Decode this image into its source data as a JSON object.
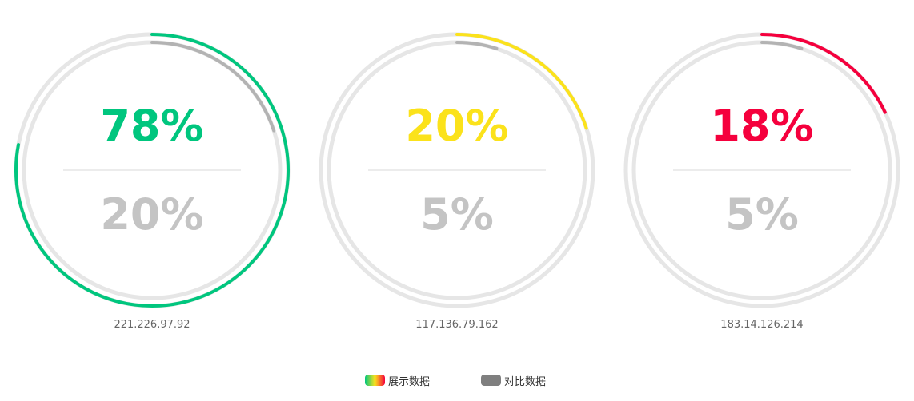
{
  "chart_data": {
    "type": "gauge",
    "gauges": [
      {
        "label": "221.226.97.92",
        "value": 78,
        "compare": 20,
        "value_text": "78%",
        "compare_text": "20%",
        "color": "#00c67e"
      },
      {
        "label": "117.136.79.162",
        "value": 20,
        "compare": 5,
        "value_text": "20%",
        "compare_text": "5%",
        "color": "#fbe21b"
      },
      {
        "label": "183.14.126.214",
        "value": 18,
        "compare": 5,
        "value_text": "18%",
        "compare_text": "5%",
        "color": "#f5003d"
      }
    ],
    "compare_color": "#b3b3b3",
    "track_color": "#e6e6e6",
    "divider_color": "#e5e5e5",
    "legend": [
      {
        "name": "展示数据",
        "swatch": "gradient",
        "colors": [
          "#00c67e",
          "#fbe21b",
          "#f5003d"
        ]
      },
      {
        "name": "对比数据",
        "swatch": "solid",
        "colors": [
          "#7f7f7f"
        ]
      }
    ]
  }
}
